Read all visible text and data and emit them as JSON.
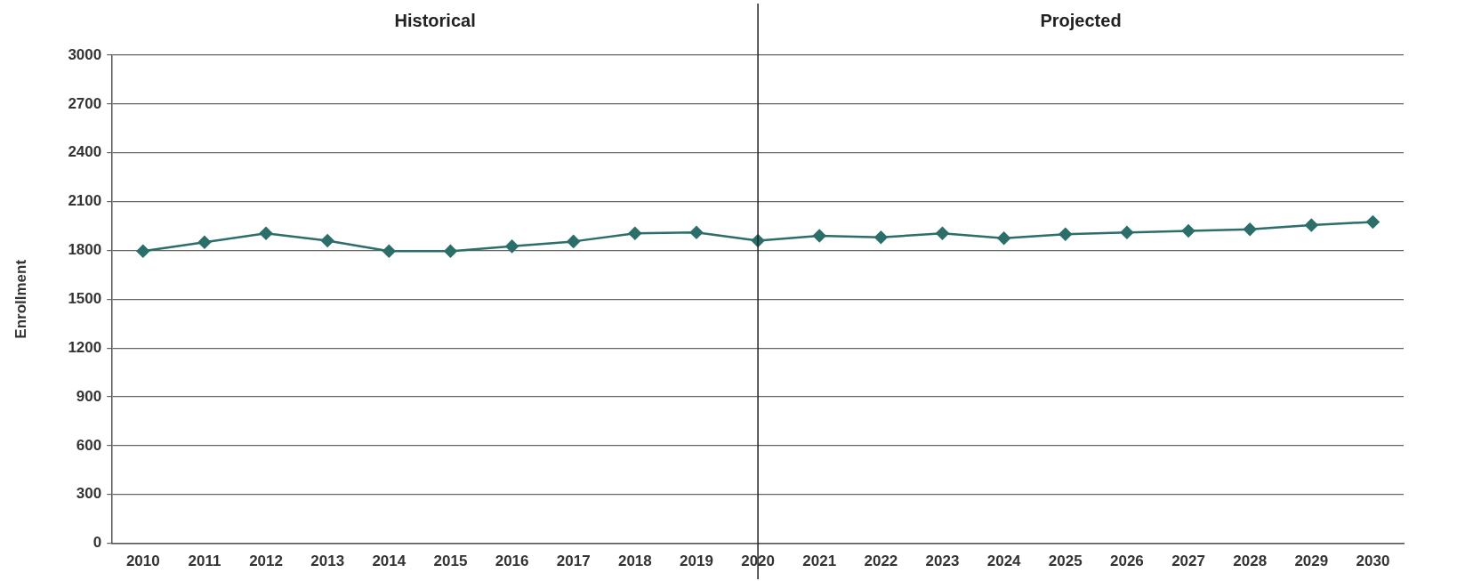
{
  "chart_data": {
    "type": "line",
    "ylabel": "Enrollment",
    "categories": [
      "2010",
      "2011",
      "2012",
      "2013",
      "2014",
      "2015",
      "2016",
      "2017",
      "2018",
      "2019",
      "2020",
      "2021",
      "2022",
      "2023",
      "2024",
      "2025",
      "2026",
      "2027",
      "2028",
      "2029",
      "2030"
    ],
    "series": [
      {
        "color": "#2b6e6a",
        "values": [
          1795,
          1850,
          1905,
          1860,
          1795,
          1795,
          1825,
          1855,
          1905,
          1910,
          1860,
          1890,
          1880,
          1905,
          1875,
          1900,
          1910,
          1920,
          1930,
          1955,
          1975
        ]
      }
    ],
    "ylim": [
      0,
      3000
    ],
    "yticks": [
      0,
      300,
      600,
      900,
      1200,
      1500,
      1800,
      2100,
      2400,
      2700,
      3000
    ],
    "grid": "y",
    "legend": false,
    "marker": "diamond",
    "line_style": "solid",
    "ref_lines": [
      {
        "axis": "x",
        "value": "2020",
        "color": "#222222"
      }
    ],
    "annotations": [
      "Historical",
      "Projected"
    ]
  }
}
